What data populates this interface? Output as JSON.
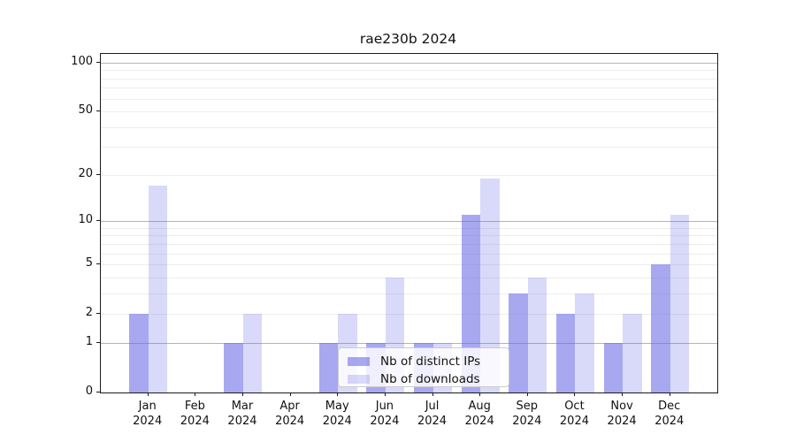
{
  "chart_data": {
    "type": "bar",
    "title": "rae230b 2024",
    "categories": [
      "Jan",
      "Feb",
      "Mar",
      "Apr",
      "May",
      "Jun",
      "Jul",
      "Aug",
      "Sep",
      "Oct",
      "Nov",
      "Dec"
    ],
    "year": "2024",
    "series": [
      {
        "name": "Nb of distinct IPs",
        "color": "rgba(105,105,230,0.58)",
        "values": [
          2,
          0,
          1,
          0,
          1,
          1,
          1,
          11,
          3,
          2,
          1,
          5
        ]
      },
      {
        "name": "Nb of downloads",
        "color": "rgba(105,105,230,0.25)",
        "values": [
          17,
          0,
          2,
          0,
          2,
          4,
          1,
          19,
          4,
          3,
          2,
          11
        ]
      }
    ],
    "yscale": "log1p",
    "ylim": [
      0,
      113
    ],
    "yticks": [
      0,
      1,
      2,
      5,
      10,
      20,
      50,
      100
    ],
    "grid": {
      "major": [
        1,
        10,
        100
      ],
      "minor": [
        2,
        3,
        4,
        5,
        6,
        7,
        8,
        9,
        20,
        30,
        40,
        50,
        60,
        70,
        80,
        90
      ],
      "major_color": "#b4b4b4",
      "minor_color": "#ededed"
    },
    "legend_position": "lower center"
  }
}
